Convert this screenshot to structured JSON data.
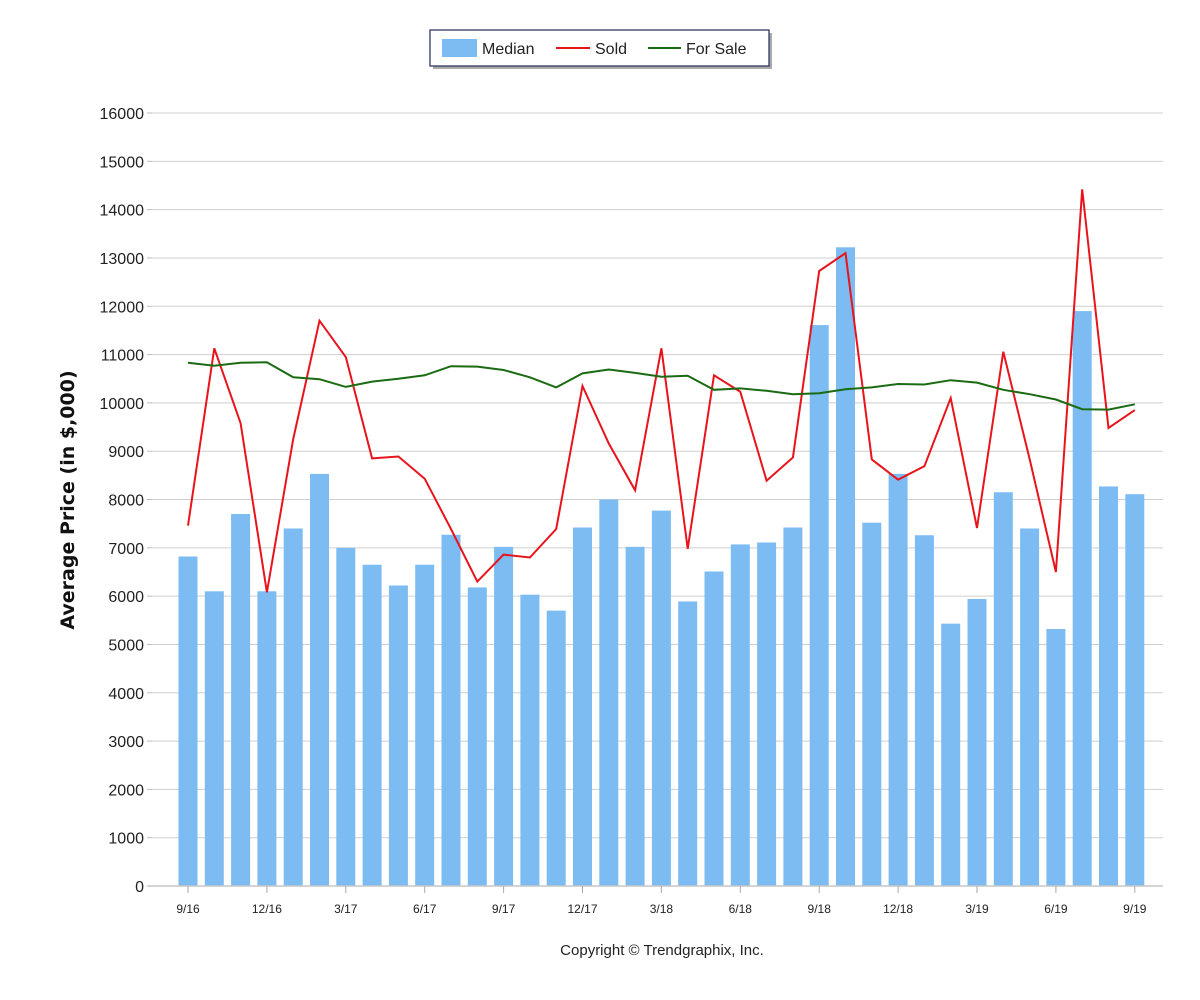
{
  "chart_data": {
    "type": "bar",
    "ylabel": "Average Price (in $,000)",
    "ylim": [
      0,
      16000
    ],
    "yticks": [
      0,
      1000,
      2000,
      3000,
      4000,
      5000,
      6000,
      7000,
      8000,
      9000,
      10000,
      11000,
      12000,
      13000,
      14000,
      15000,
      16000
    ],
    "x_tick_labels": [
      "9/16",
      "12/16",
      "3/17",
      "6/17",
      "9/17",
      "12/17",
      "3/18",
      "6/18",
      "9/18",
      "12/18",
      "3/19",
      "6/19",
      "9/19"
    ],
    "x_tick_every": 3,
    "categories": [
      "9/16",
      "10/16",
      "11/16",
      "12/16",
      "1/17",
      "2/17",
      "3/17",
      "4/17",
      "5/17",
      "6/17",
      "7/17",
      "8/17",
      "9/17",
      "10/17",
      "11/17",
      "12/17",
      "1/18",
      "2/18",
      "3/18",
      "4/18",
      "5/18",
      "6/18",
      "7/18",
      "8/18",
      "9/18",
      "10/18",
      "11/18",
      "12/18",
      "1/19",
      "2/19",
      "3/19",
      "4/19",
      "5/19",
      "6/19",
      "7/19",
      "8/19",
      "9/19"
    ],
    "grid": true,
    "legend_position": "top-center",
    "series": [
      {
        "name": "Median",
        "kind": "bar",
        "color": "#7cbcf2",
        "values": [
          6820,
          6100,
          7700,
          6100,
          7400,
          8530,
          7000,
          6650,
          6220,
          6650,
          7270,
          6180,
          7020,
          6030,
          5700,
          7420,
          8000,
          7020,
          7770,
          5890,
          6510,
          7070,
          7110,
          7420,
          11610,
          13220,
          7520,
          8530,
          7260,
          5430,
          5940,
          8150,
          7400,
          5320,
          11900,
          8270,
          8110
        ]
      },
      {
        "name": "Sold",
        "kind": "line",
        "color": "#e8141c",
        "values": [
          7460,
          11130,
          9580,
          6080,
          9250,
          11700,
          10950,
          8850,
          8890,
          8430,
          7390,
          6300,
          6860,
          6800,
          7390,
          10350,
          9160,
          8190,
          11130,
          6980,
          10570,
          10230,
          8390,
          8870,
          12730,
          13100,
          8830,
          8410,
          8690,
          10100,
          7410,
          11060,
          8840,
          6500,
          14420,
          9480,
          9850
        ]
      },
      {
        "name": "For Sale",
        "kind": "line",
        "color": "#1a6b12",
        "values": [
          10830,
          10770,
          10830,
          10840,
          10530,
          10490,
          10330,
          10440,
          10500,
          10570,
          10760,
          10750,
          10680,
          10530,
          10320,
          10610,
          10690,
          10620,
          10540,
          10560,
          10270,
          10300,
          10250,
          10180,
          10200,
          10280,
          10320,
          10390,
          10380,
          10470,
          10420,
          10270,
          10180,
          10070,
          9870,
          9860,
          9970
        ]
      }
    ]
  },
  "footer": {
    "copyright": "Copyright © Trendgraphix, Inc."
  }
}
